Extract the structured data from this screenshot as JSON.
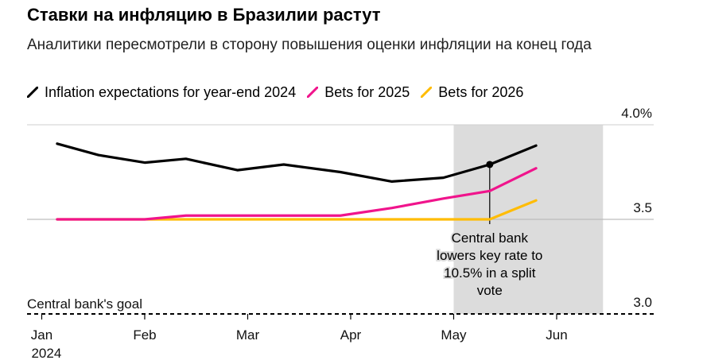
{
  "header": {
    "title": "Ставки на инфляцию в Бразилии растут",
    "subtitle": "Аналитики пересмотрели в сторону повышения оценки инфляции на конец года"
  },
  "chart_data": {
    "type": "line",
    "title": "Ставки на инфляцию в Бразилии растут",
    "xlabel": "",
    "ylabel": "",
    "ylim": [
      3.0,
      4.0
    ],
    "y_ticks": [
      {
        "value": 3.0,
        "label": "3.0"
      },
      {
        "value": 3.5,
        "label": "3.5"
      },
      {
        "value": 4.0,
        "label": "4.0%"
      }
    ],
    "x_domain": [
      0,
      6
    ],
    "x_ticks": [
      {
        "x": 0.05,
        "label": "Jan",
        "sublabel": "2024"
      },
      {
        "x": 1.05,
        "label": "Feb"
      },
      {
        "x": 2.05,
        "label": "Mar"
      },
      {
        "x": 3.05,
        "label": "Apr"
      },
      {
        "x": 4.05,
        "label": "May"
      },
      {
        "x": 5.05,
        "label": "Jun"
      }
    ],
    "series": [
      {
        "name": "Inflation expectations for year-end 2024",
        "color": "#000000",
        "x": [
          0.2,
          0.6,
          1.05,
          1.45,
          1.95,
          2.4,
          2.95,
          3.45,
          3.95,
          4.4,
          4.85
        ],
        "values": [
          3.9,
          3.84,
          3.8,
          3.82,
          3.76,
          3.79,
          3.75,
          3.7,
          3.72,
          3.79,
          3.89
        ]
      },
      {
        "name": "Bets for 2025",
        "color": "#f0148c",
        "x": [
          0.2,
          1.05,
          1.45,
          2.4,
          2.95,
          3.45,
          3.95,
          4.4,
          4.85
        ],
        "values": [
          3.5,
          3.5,
          3.52,
          3.52,
          3.52,
          3.56,
          3.61,
          3.65,
          3.77
        ]
      },
      {
        "name": "Bets for 2026",
        "color": "#ffbc05",
        "x": [
          0.2,
          1.05,
          1.45,
          2.4,
          2.95,
          3.45,
          3.95,
          4.4,
          4.85
        ],
        "values": [
          3.5,
          3.5,
          3.5,
          3.5,
          3.5,
          3.5,
          3.5,
          3.5,
          3.6
        ]
      }
    ],
    "reference_lines": [
      {
        "value": 3.5,
        "style": "solid",
        "label": ""
      },
      {
        "value": 3.0,
        "style": "dashed",
        "label": "Central bank's goal"
      }
    ],
    "shaded_region": {
      "x_start": 4.05,
      "x_end": 5.5,
      "color": "#dcdcdc"
    },
    "annotation": {
      "x": 4.4,
      "y": 3.79,
      "lines": [
        "Central bank",
        "lowers key rate to",
        "10.5% in a split",
        "vote"
      ]
    }
  }
}
